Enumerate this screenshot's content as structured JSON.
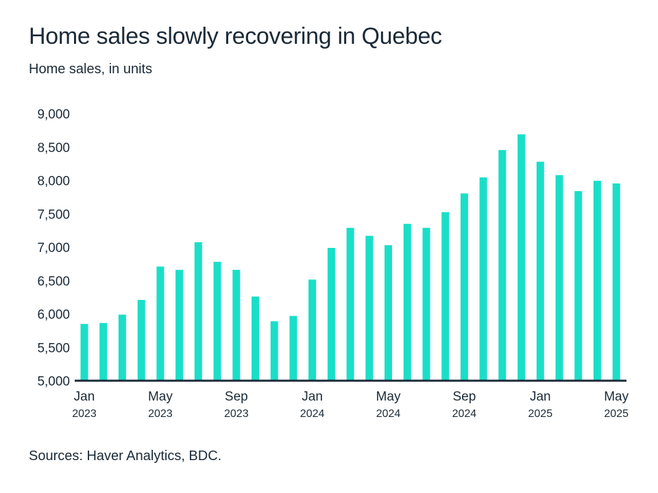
{
  "header": {
    "title": "Home sales slowly recovering in Quebec",
    "subtitle": "Home sales, in units"
  },
  "footer": {
    "source": "Sources: Haver Analytics, BDC."
  },
  "colors": {
    "bar": "#1adfc8",
    "axis": "#1b2a38",
    "text": "#1b2a38"
  },
  "chart_data": {
    "type": "bar",
    "title": "Home sales slowly recovering in Quebec",
    "subtitle": "Home sales, in units",
    "xlabel": "",
    "ylabel": "Home sales, in units",
    "ylim": [
      5000,
      9000
    ],
    "yticks": [
      5000,
      5500,
      6000,
      6500,
      7000,
      7500,
      8000,
      8500,
      9000
    ],
    "ytick_labels": [
      "5,000",
      "5,500",
      "6,000",
      "6,500",
      "7,000",
      "7,500",
      "8,000",
      "8,500",
      "9,000"
    ],
    "grid": false,
    "legend": "none",
    "categories": [
      "Jan 2023",
      "Feb 2023",
      "Mar 2023",
      "Apr 2023",
      "May 2023",
      "Jun 2023",
      "Jul 2023",
      "Aug 2023",
      "Sep 2023",
      "Oct 2023",
      "Nov 2023",
      "Dec 2023",
      "Jan 2024",
      "Feb 2024",
      "Mar 2024",
      "Apr 2024",
      "May 2024",
      "Jun 2024",
      "Jul 2024",
      "Aug 2024",
      "Sep 2024",
      "Oct 2024",
      "Nov 2024",
      "Dec 2024",
      "Jan 2025",
      "Feb 2025",
      "Mar 2025",
      "Apr 2025",
      "May 2025"
    ],
    "values": [
      5850,
      5865,
      5990,
      6210,
      6710,
      6660,
      7075,
      6780,
      6660,
      6260,
      5890,
      5970,
      6515,
      6990,
      7290,
      7170,
      7030,
      7350,
      7290,
      7525,
      7805,
      8045,
      8455,
      8690,
      8280,
      8080,
      7840,
      7995,
      7955
    ],
    "xtick_labels": [
      {
        "index": 0,
        "month": "Jan",
        "year": "2023"
      },
      {
        "index": 4,
        "month": "May",
        "year": "2023"
      },
      {
        "index": 8,
        "month": "Sep",
        "year": "2023"
      },
      {
        "index": 12,
        "month": "Jan",
        "year": "2024"
      },
      {
        "index": 16,
        "month": "May",
        "year": "2024"
      },
      {
        "index": 20,
        "month": "Sep",
        "year": "2024"
      },
      {
        "index": 24,
        "month": "Jan",
        "year": "2025"
      },
      {
        "index": 28,
        "month": "May",
        "year": "2025"
      }
    ]
  }
}
